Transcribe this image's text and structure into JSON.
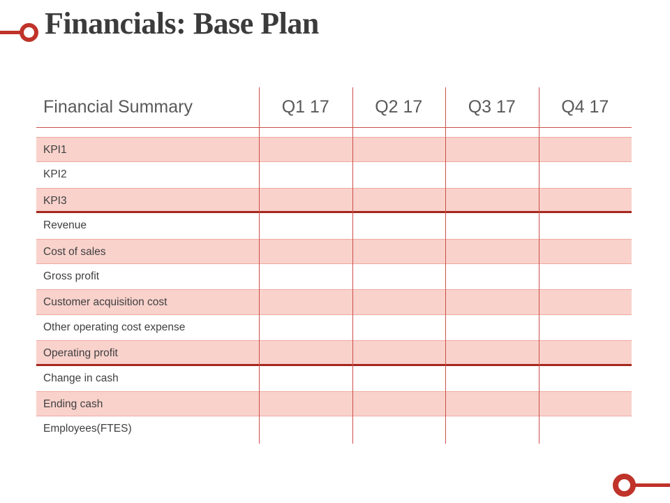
{
  "page": {
    "title": "Financials: Base Plan"
  },
  "colors": {
    "accent_red": "#bf332a",
    "line_red": "#cc5048",
    "thick_red": "#a5281f",
    "row_pink": "#f9d2cc",
    "row_pink_border": "#f0a9a1",
    "header_text": "#595959",
    "row_text": "#3f3f3f",
    "title_text": "#3b3b3b"
  },
  "table": {
    "header": {
      "label": "Financial Summary",
      "columns": [
        "Q1 17",
        "Q2 17",
        "Q3 17",
        "Q4 17"
      ]
    },
    "rows": [
      {
        "label": "KPI1",
        "shaded": true,
        "separator_after": false,
        "values": [
          "",
          "",
          "",
          ""
        ]
      },
      {
        "label": "KPI2",
        "shaded": false,
        "separator_after": false,
        "values": [
          "",
          "",
          "",
          ""
        ]
      },
      {
        "label": "KPI3",
        "shaded": true,
        "separator_after": true,
        "values": [
          "",
          "",
          "",
          ""
        ]
      },
      {
        "label": "Revenue",
        "shaded": false,
        "separator_after": false,
        "values": [
          "",
          "",
          "",
          ""
        ]
      },
      {
        "label": "Cost of sales",
        "shaded": true,
        "separator_after": false,
        "values": [
          "",
          "",
          "",
          ""
        ]
      },
      {
        "label": "Gross profit",
        "shaded": false,
        "separator_after": false,
        "values": [
          "",
          "",
          "",
          ""
        ]
      },
      {
        "label": "Customer acquisition cost",
        "shaded": true,
        "separator_after": false,
        "values": [
          "",
          "",
          "",
          ""
        ]
      },
      {
        "label": "Other operating cost expense",
        "shaded": false,
        "separator_after": false,
        "values": [
          "",
          "",
          "",
          ""
        ]
      },
      {
        "label": "Operating profit",
        "shaded": true,
        "separator_after": true,
        "values": [
          "",
          "",
          "",
          ""
        ]
      },
      {
        "label": "Change in cash",
        "shaded": false,
        "separator_after": false,
        "values": [
          "",
          "",
          "",
          ""
        ]
      },
      {
        "label": "Ending cash",
        "shaded": true,
        "separator_after": false,
        "values": [
          "",
          "",
          "",
          ""
        ]
      },
      {
        "label": "Employees(FTES)",
        "shaded": false,
        "separator_after": false,
        "values": [
          "",
          "",
          "",
          ""
        ]
      }
    ]
  }
}
